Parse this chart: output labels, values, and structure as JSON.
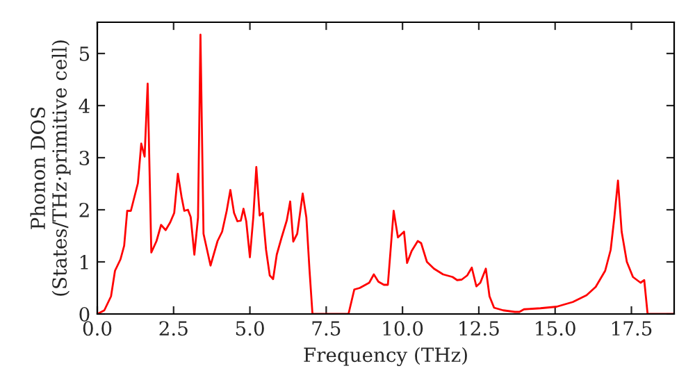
{
  "chart_data": {
    "type": "line",
    "xlabel": "Frequency (THz)",
    "ylabel": "Phonon DOS\n(States/THz·primitive cell)",
    "xlim": [
      0,
      18.9
    ],
    "ylim": [
      0,
      5.6
    ],
    "xticks": [
      {
        "value": 0,
        "label": "0.0"
      },
      {
        "value": 2.5,
        "label": "2.5"
      },
      {
        "value": 5,
        "label": "5.0"
      },
      {
        "value": 7.5,
        "label": "7.5"
      },
      {
        "value": 10,
        "label": "10.0"
      },
      {
        "value": 12.5,
        "label": "12.5"
      },
      {
        "value": 15,
        "label": "15.0"
      },
      {
        "value": 17.5,
        "label": "17.5"
      }
    ],
    "yticks": [
      0,
      1,
      2,
      3,
      4,
      5
    ],
    "grid": false,
    "marker": "none",
    "line_style": "solid",
    "series": [
      {
        "color": "#ff0000",
        "x": [
          0,
          0.23,
          0.45,
          0.58,
          0.76,
          0.88,
          0.98,
          1.1,
          1.33,
          1.44,
          1.55,
          1.65,
          1.77,
          1.94,
          2.09,
          2.24,
          2.39,
          2.52,
          2.64,
          2.76,
          2.85,
          2.97,
          3.06,
          3.18,
          3.3,
          3.38,
          3.48,
          3.71,
          3.94,
          4.09,
          4.24,
          4.36,
          4.48,
          4.59,
          4.7,
          4.79,
          4.88,
          5.0,
          5.11,
          5.21,
          5.32,
          5.42,
          5.53,
          5.65,
          5.76,
          5.88,
          6.03,
          6.21,
          6.32,
          6.42,
          6.55,
          6.73,
          6.85,
          6.95,
          7.05,
          8.23,
          8.42,
          8.6,
          8.91,
          9.06,
          9.21,
          9.39,
          9.52,
          9.71,
          9.85,
          10.05,
          10.15,
          10.3,
          10.5,
          10.61,
          10.8,
          11.03,
          11.33,
          11.64,
          11.79,
          11.94,
          12.12,
          12.27,
          12.42,
          12.55,
          12.73,
          12.85,
          13.0,
          13.3,
          13.68,
          13.83,
          13.98,
          14.52,
          15.05,
          15.58,
          16.03,
          16.33,
          16.64,
          16.82,
          16.94,
          17.06,
          17.18,
          17.35,
          17.55,
          17.8,
          17.92,
          18.03,
          18.9
        ],
        "values": [
          0,
          0.07,
          0.34,
          0.83,
          1.05,
          1.31,
          1.98,
          1.98,
          2.51,
          3.27,
          3.02,
          4.42,
          1.18,
          1.4,
          1.71,
          1.61,
          1.76,
          1.94,
          2.69,
          2.25,
          1.98,
          2.0,
          1.86,
          1.14,
          1.85,
          5.36,
          1.54,
          0.93,
          1.4,
          1.58,
          1.98,
          2.38,
          1.94,
          1.78,
          1.79,
          2.02,
          1.78,
          1.09,
          1.85,
          2.82,
          1.89,
          1.94,
          1.23,
          0.74,
          0.67,
          1.14,
          1.45,
          1.8,
          2.16,
          1.39,
          1.54,
          2.31,
          1.85,
          0.87,
          0,
          0,
          0.47,
          0.5,
          0.6,
          0.76,
          0.62,
          0.56,
          0.56,
          1.98,
          1.47,
          1.58,
          0.98,
          1.21,
          1.4,
          1.36,
          1.0,
          0.87,
          0.76,
          0.71,
          0.65,
          0.66,
          0.74,
          0.89,
          0.53,
          0.6,
          0.87,
          0.34,
          0.12,
          0.07,
          0.04,
          0.04,
          0.09,
          0.11,
          0.14,
          0.23,
          0.36,
          0.52,
          0.83,
          1.23,
          1.85,
          2.56,
          1.58,
          1.0,
          0.71,
          0.6,
          0.65,
          0,
          0
        ]
      }
    ]
  }
}
